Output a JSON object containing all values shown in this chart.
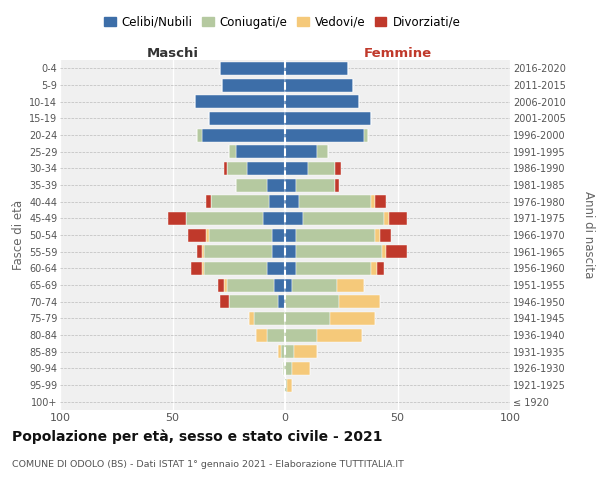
{
  "age_groups": [
    "100+",
    "95-99",
    "90-94",
    "85-89",
    "80-84",
    "75-79",
    "70-74",
    "65-69",
    "60-64",
    "55-59",
    "50-54",
    "45-49",
    "40-44",
    "35-39",
    "30-34",
    "25-29",
    "20-24",
    "15-19",
    "10-14",
    "5-9",
    "0-4"
  ],
  "birth_years": [
    "≤ 1920",
    "1921-1925",
    "1926-1930",
    "1931-1935",
    "1936-1940",
    "1941-1945",
    "1946-1950",
    "1951-1955",
    "1956-1960",
    "1961-1965",
    "1966-1970",
    "1971-1975",
    "1976-1980",
    "1981-1985",
    "1986-1990",
    "1991-1995",
    "1996-2000",
    "2001-2005",
    "2006-2010",
    "2011-2015",
    "2016-2020"
  ],
  "males": {
    "celibi": [
      0,
      0,
      0,
      0,
      0,
      0,
      3,
      5,
      8,
      6,
      6,
      10,
      7,
      8,
      17,
      22,
      37,
      34,
      40,
      28,
      29
    ],
    "coniugati": [
      0,
      0,
      1,
      2,
      8,
      14,
      22,
      21,
      28,
      30,
      28,
      34,
      26,
      14,
      9,
      3,
      2,
      0,
      0,
      0,
      0
    ],
    "vedovi": [
      0,
      0,
      0,
      1,
      5,
      2,
      0,
      1,
      1,
      1,
      1,
      0,
      0,
      0,
      0,
      0,
      0,
      0,
      0,
      0,
      0
    ],
    "divorziati": [
      0,
      0,
      0,
      0,
      0,
      0,
      4,
      3,
      5,
      2,
      8,
      8,
      2,
      0,
      1,
      0,
      0,
      0,
      0,
      0,
      0
    ]
  },
  "females": {
    "nubili": [
      0,
      0,
      0,
      0,
      0,
      0,
      0,
      3,
      5,
      5,
      5,
      8,
      6,
      5,
      10,
      14,
      35,
      38,
      33,
      30,
      28
    ],
    "coniugate": [
      0,
      1,
      3,
      4,
      14,
      20,
      24,
      20,
      33,
      38,
      35,
      36,
      32,
      17,
      12,
      5,
      2,
      0,
      0,
      0,
      0
    ],
    "vedove": [
      0,
      2,
      8,
      10,
      20,
      20,
      18,
      12,
      3,
      2,
      2,
      2,
      2,
      0,
      0,
      0,
      0,
      0,
      0,
      0,
      0
    ],
    "divorziate": [
      0,
      0,
      0,
      0,
      0,
      0,
      0,
      0,
      3,
      9,
      5,
      8,
      5,
      2,
      3,
      0,
      0,
      0,
      0,
      0,
      0
    ]
  },
  "colors": {
    "celibi": "#3d6ea8",
    "coniugati": "#b5c9a0",
    "vedovi": "#f5c97a",
    "divorziati": "#c0392b"
  },
  "title": "Popolazione per età, sesso e stato civile - 2021",
  "subtitle": "COMUNE DI ODOLO (BS) - Dati ISTAT 1° gennaio 2021 - Elaborazione TUTTITALIA.IT",
  "xlabel_left": "Maschi",
  "xlabel_right": "Femmine",
  "ylabel_left": "Fasce di età",
  "ylabel_right": "Anni di nascita",
  "xlim": 100,
  "legend_labels": [
    "Celibi/Nubili",
    "Coniugati/e",
    "Vedovi/e",
    "Divorziati/e"
  ],
  "bg_color": "#f0f0f0",
  "grid_color": "#ffffff",
  "dashed_color": "#cccccc"
}
